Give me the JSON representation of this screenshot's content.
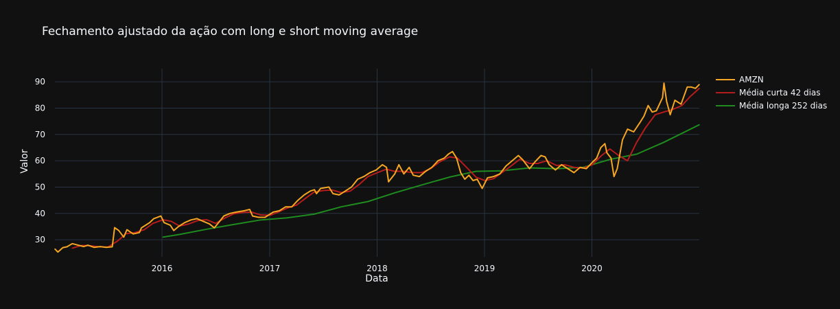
{
  "chart_data": {
    "type": "line",
    "title": "Fechamento ajustado da ação com long e short moving average",
    "xlabel": "Data",
    "ylabel": "Valor",
    "xlim": [
      "2015-01-02",
      "2020-12-31"
    ],
    "ylim": [
      23.5,
      95
    ],
    "x_ticks": [
      "2016",
      "2017",
      "2018",
      "2019",
      "2020"
    ],
    "y_ticks": [
      30,
      40,
      50,
      60,
      70,
      80,
      90
    ],
    "grid": true,
    "legend": "top-right",
    "colors": {
      "background": "#111111",
      "grid": "#283442",
      "text": "#f2f5fa"
    },
    "series": [
      {
        "name": "AMZN",
        "color": "#f5a623",
        "points": [
          [
            "2015-01-02",
            26.5
          ],
          [
            "2015-01-12",
            25.3
          ],
          [
            "2015-01-29",
            27.0
          ],
          [
            "2015-02-12",
            27.3
          ],
          [
            "2015-03-02",
            28.5
          ],
          [
            "2015-03-20",
            28.0
          ],
          [
            "2015-04-10",
            27.4
          ],
          [
            "2015-04-24",
            27.9
          ],
          [
            "2015-05-15",
            27.1
          ],
          [
            "2015-06-05",
            27.4
          ],
          [
            "2015-06-26",
            27.1
          ],
          [
            "2015-07-16",
            27.3
          ],
          [
            "2015-07-24",
            34.6
          ],
          [
            "2015-08-07",
            33.5
          ],
          [
            "2015-08-24",
            31.0
          ],
          [
            "2015-09-04",
            33.8
          ],
          [
            "2015-09-25",
            32.2
          ],
          [
            "2015-10-16",
            32.7
          ],
          [
            "2015-10-23",
            34.5
          ],
          [
            "2015-11-06",
            35.5
          ],
          [
            "2015-11-20",
            36.5
          ],
          [
            "2015-12-04",
            38.0
          ],
          [
            "2015-12-28",
            39.0
          ],
          [
            "2016-01-08",
            36.5
          ],
          [
            "2016-01-29",
            35.5
          ],
          [
            "2016-02-10",
            33.5
          ],
          [
            "2016-02-26",
            35.0
          ],
          [
            "2016-03-18",
            36.5
          ],
          [
            "2016-04-08",
            37.5
          ],
          [
            "2016-04-29",
            38.0
          ],
          [
            "2016-05-20",
            37.0
          ],
          [
            "2016-06-10",
            36.0
          ],
          [
            "2016-06-27",
            34.5
          ],
          [
            "2016-07-15",
            37.0
          ],
          [
            "2016-07-29",
            39.0
          ],
          [
            "2016-08-19",
            40.0
          ],
          [
            "2016-09-09",
            40.5
          ],
          [
            "2016-10-07",
            41.0
          ],
          [
            "2016-10-25",
            41.5
          ],
          [
            "2016-11-04",
            39.0
          ],
          [
            "2016-11-25",
            38.5
          ],
          [
            "2016-12-16",
            38.5
          ],
          [
            "2017-01-13",
            40.5
          ],
          [
            "2017-02-03",
            41.0
          ],
          [
            "2017-02-24",
            42.5
          ],
          [
            "2017-03-17",
            42.5
          ],
          [
            "2017-04-07",
            45.0
          ],
          [
            "2017-04-28",
            47.0
          ],
          [
            "2017-05-19",
            48.5
          ],
          [
            "2017-06-02",
            49.0
          ],
          [
            "2017-06-09",
            47.5
          ],
          [
            "2017-06-23",
            49.5
          ],
          [
            "2017-07-21",
            50.0
          ],
          [
            "2017-08-04",
            47.5
          ],
          [
            "2017-08-25",
            47.0
          ],
          [
            "2017-09-15",
            48.5
          ],
          [
            "2017-10-06",
            50.0
          ],
          [
            "2017-10-27",
            53.0
          ],
          [
            "2017-11-17",
            54.0
          ],
          [
            "2017-12-08",
            55.5
          ],
          [
            "2017-12-29",
            56.5
          ],
          [
            "2018-01-19",
            58.5
          ],
          [
            "2018-02-02",
            57.5
          ],
          [
            "2018-02-09",
            52.0
          ],
          [
            "2018-03-02",
            55.0
          ],
          [
            "2018-03-16",
            58.5
          ],
          [
            "2018-04-02",
            55.0
          ],
          [
            "2018-04-20",
            57.5
          ],
          [
            "2018-05-04",
            54.5
          ],
          [
            "2018-05-25",
            54.0
          ],
          [
            "2018-06-15",
            56.0
          ],
          [
            "2018-07-06",
            57.5
          ],
          [
            "2018-07-27",
            60.0
          ],
          [
            "2018-08-17",
            61.0
          ],
          [
            "2018-08-31",
            62.5
          ],
          [
            "2018-09-14",
            63.5
          ],
          [
            "2018-09-28",
            61.0
          ],
          [
            "2018-10-12",
            55.5
          ],
          [
            "2018-10-26",
            53.0
          ],
          [
            "2018-11-09",
            54.5
          ],
          [
            "2018-11-23",
            52.5
          ],
          [
            "2018-12-07",
            53.0
          ],
          [
            "2018-12-24",
            49.5
          ],
          [
            "2019-01-11",
            53.5
          ],
          [
            "2019-02-01",
            54.0
          ],
          [
            "2019-02-22",
            55.0
          ],
          [
            "2019-03-15",
            58.0
          ],
          [
            "2019-04-05",
            60.0
          ],
          [
            "2019-04-26",
            62.0
          ],
          [
            "2019-05-10",
            60.5
          ],
          [
            "2019-06-03",
            57.0
          ],
          [
            "2019-06-21",
            59.5
          ],
          [
            "2019-07-12",
            62.0
          ],
          [
            "2019-07-26",
            61.5
          ],
          [
            "2019-08-09",
            58.5
          ],
          [
            "2019-08-30",
            56.5
          ],
          [
            "2019-09-20",
            58.5
          ],
          [
            "2019-10-11",
            57.0
          ],
          [
            "2019-11-01",
            55.5
          ],
          [
            "2019-11-22",
            57.5
          ],
          [
            "2019-12-13",
            57.0
          ],
          [
            "2020-01-03",
            59.5
          ],
          [
            "2020-01-17",
            61.0
          ],
          [
            "2020-01-31",
            65.0
          ],
          [
            "2020-02-14",
            66.5
          ],
          [
            "2020-02-21",
            63.0
          ],
          [
            "2020-03-06",
            61.0
          ],
          [
            "2020-03-16",
            54.0
          ],
          [
            "2020-03-27",
            57.0
          ],
          [
            "2020-04-14",
            68.0
          ],
          [
            "2020-05-01",
            72.0
          ],
          [
            "2020-05-22",
            71.0
          ],
          [
            "2020-06-12",
            74.5
          ],
          [
            "2020-06-26",
            77.0
          ],
          [
            "2020-07-10",
            81.0
          ],
          [
            "2020-07-24",
            78.5
          ],
          [
            "2020-08-07",
            79.0
          ],
          [
            "2020-08-28",
            84.0
          ],
          [
            "2020-09-02",
            89.5
          ],
          [
            "2020-09-11",
            82.5
          ],
          [
            "2020-09-23",
            77.5
          ],
          [
            "2020-10-09",
            83.0
          ],
          [
            "2020-10-30",
            81.5
          ],
          [
            "2020-11-20",
            88.0
          ],
          [
            "2020-12-04",
            88.0
          ],
          [
            "2020-12-18",
            87.5
          ],
          [
            "2020-12-31",
            89.0
          ]
        ]
      },
      {
        "name": "Média curta 42 dias",
        "color": "#b71c1c",
        "points": [
          [
            "2015-03-02",
            26.8
          ],
          [
            "2015-04-02",
            27.8
          ],
          [
            "2015-05-01",
            27.7
          ],
          [
            "2015-06-01",
            27.3
          ],
          [
            "2015-07-01",
            27.2
          ],
          [
            "2015-08-03",
            29.5
          ],
          [
            "2015-09-01",
            32.3
          ],
          [
            "2015-10-01",
            32.7
          ],
          [
            "2015-11-02",
            33.8
          ],
          [
            "2015-12-01",
            36.2
          ],
          [
            "2016-01-04",
            37.6
          ],
          [
            "2016-02-01",
            37.0
          ],
          [
            "2016-03-01",
            35.2
          ],
          [
            "2016-04-01",
            36.0
          ],
          [
            "2016-05-02",
            37.3
          ],
          [
            "2016-06-01",
            37.6
          ],
          [
            "2016-07-01",
            36.2
          ],
          [
            "2016-08-01",
            38.2
          ],
          [
            "2016-09-01",
            39.9
          ],
          [
            "2016-10-03",
            40.4
          ],
          [
            "2016-11-01",
            40.5
          ],
          [
            "2016-12-01",
            39.4
          ],
          [
            "2017-01-03",
            39.3
          ],
          [
            "2017-02-01",
            40.6
          ],
          [
            "2017-03-01",
            42.0
          ],
          [
            "2017-04-03",
            43.2
          ],
          [
            "2017-05-01",
            45.6
          ],
          [
            "2017-06-01",
            48.1
          ],
          [
            "2017-07-03",
            48.7
          ],
          [
            "2017-08-01",
            48.9
          ],
          [
            "2017-09-01",
            47.9
          ],
          [
            "2017-10-02",
            48.5
          ],
          [
            "2017-11-01",
            51.0
          ],
          [
            "2017-12-01",
            54.0
          ],
          [
            "2018-01-02",
            55.5
          ],
          [
            "2018-02-01",
            56.8
          ],
          [
            "2018-03-01",
            56.0
          ],
          [
            "2018-04-02",
            56.0
          ],
          [
            "2018-05-01",
            55.5
          ],
          [
            "2018-06-01",
            55.5
          ],
          [
            "2018-07-02",
            57.0
          ],
          [
            "2018-08-01",
            59.5
          ],
          [
            "2018-09-04",
            61.5
          ],
          [
            "2018-10-01",
            61.0
          ],
          [
            "2018-11-01",
            57.5
          ],
          [
            "2018-12-03",
            53.8
          ],
          [
            "2019-01-02",
            52.5
          ],
          [
            "2019-02-01",
            53.2
          ],
          [
            "2019-03-01",
            55.5
          ],
          [
            "2019-04-01",
            58.0
          ],
          [
            "2019-05-01",
            60.6
          ],
          [
            "2019-06-03",
            59.0
          ],
          [
            "2019-07-01",
            59.0
          ],
          [
            "2019-08-01",
            60.0
          ],
          [
            "2019-09-03",
            58.2
          ],
          [
            "2019-10-01",
            58.5
          ],
          [
            "2019-11-01",
            57.5
          ],
          [
            "2019-12-02",
            57.2
          ],
          [
            "2020-01-02",
            58.5
          ],
          [
            "2020-02-03",
            62.0
          ],
          [
            "2020-03-02",
            64.5
          ],
          [
            "2020-04-01",
            62.0
          ],
          [
            "2020-05-01",
            60.0
          ],
          [
            "2020-06-01",
            67.0
          ],
          [
            "2020-07-01",
            72.5
          ],
          [
            "2020-08-03",
            77.5
          ],
          [
            "2020-09-01",
            78.5
          ],
          [
            "2020-10-01",
            79.5
          ],
          [
            "2020-11-02",
            81.0
          ],
          [
            "2020-12-01",
            84.5
          ],
          [
            "2020-12-31",
            87.5
          ]
        ]
      },
      {
        "name": "Média longa 252 dias",
        "color": "#1e8c1e",
        "points": [
          [
            "2016-01-04",
            31.0
          ],
          [
            "2016-03-01",
            32.0
          ],
          [
            "2016-06-01",
            34.0
          ],
          [
            "2016-09-01",
            35.8
          ],
          [
            "2016-12-01",
            37.5
          ],
          [
            "2017-03-01",
            38.3
          ],
          [
            "2017-06-01",
            39.7
          ],
          [
            "2017-09-01",
            42.5
          ],
          [
            "2017-12-01",
            44.5
          ],
          [
            "2018-03-01",
            47.8
          ],
          [
            "2018-06-01",
            50.8
          ],
          [
            "2018-09-04",
            53.8
          ],
          [
            "2018-12-03",
            56.0
          ],
          [
            "2019-03-01",
            56.2
          ],
          [
            "2019-06-03",
            57.3
          ],
          [
            "2019-09-03",
            57.0
          ],
          [
            "2019-12-02",
            57.5
          ],
          [
            "2020-03-02",
            60.5
          ],
          [
            "2020-06-01",
            62.5
          ],
          [
            "2020-09-01",
            67.0
          ],
          [
            "2020-12-31",
            73.7
          ]
        ]
      }
    ]
  }
}
